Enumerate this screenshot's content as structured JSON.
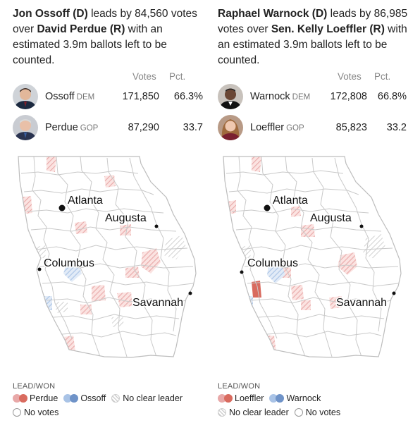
{
  "colors": {
    "rep": "#e8a8a8",
    "rep_strong": "#d96b5f",
    "dem": "#a9c3e6",
    "dem_strong": "#6f93c8",
    "county_line": "#c9c9c9",
    "no_clear": "#e4e4e4"
  },
  "races": [
    {
      "headline": {
        "part1": "Jon Ossoff (D)",
        "part2": " leads by 84,560 votes over ",
        "part3": "David Perdue (R)",
        "part4": " with an estimated 3.9m ballots left to be counted."
      },
      "col_votes": "Votes",
      "col_pct": "Pct.",
      "candidates": [
        {
          "name": "Ossoff",
          "party": "DEM",
          "votes": "171,850",
          "pct": "66.3%",
          "avatar_icon": "ossoff-portrait"
        },
        {
          "name": "Perdue",
          "party": "GOP",
          "votes": "87,290",
          "pct": "33.7",
          "avatar_icon": "perdue-portrait"
        }
      ],
      "map": {
        "cities": {
          "atlanta": "Atlanta",
          "augusta": "Augusta",
          "columbus": "Columbus",
          "savannah": "Savannah"
        }
      },
      "legend": {
        "title": "LEAD/WON",
        "rep_label": "Perdue",
        "dem_label": "Ossoff",
        "no_clear_label": "No clear leader",
        "no_votes_label": "No votes"
      }
    },
    {
      "headline": {
        "part1": "Raphael Warnock (D)",
        "part2": " leads by 86,985 votes over ",
        "part3": "Sen. Kelly Loeffler (R)",
        "part4": " with an estimated 3.9m ballots left to be counted."
      },
      "col_votes": "Votes",
      "col_pct": "Pct.",
      "candidates": [
        {
          "name": "Warnock",
          "party": "DEM",
          "votes": "172,808",
          "pct": "66.8%",
          "avatar_icon": "warnock-portrait"
        },
        {
          "name": "Loeffler",
          "party": "GOP",
          "votes": "85,823",
          "pct": "33.2",
          "avatar_icon": "loeffler-portrait"
        }
      ],
      "map": {
        "cities": {
          "atlanta": "Atlanta",
          "augusta": "Augusta",
          "columbus": "Columbus",
          "savannah": "Savannah"
        }
      },
      "legend": {
        "title": "LEAD/WON",
        "rep_label": "Loeffler",
        "dem_label": "Warnock",
        "no_clear_label": "No clear leader",
        "no_votes_label": "No votes"
      }
    }
  ]
}
